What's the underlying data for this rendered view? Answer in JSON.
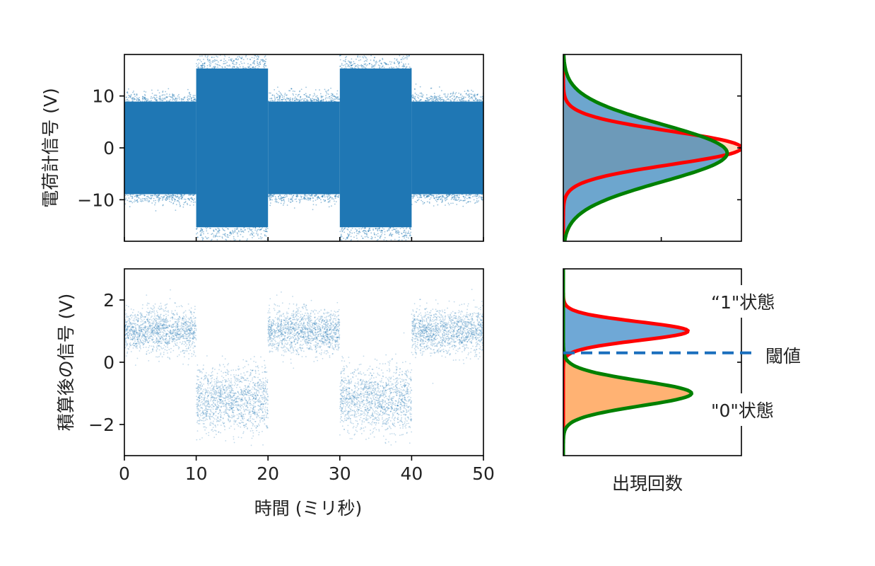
{
  "chart_data": [
    {
      "id": "raw_signal",
      "type": "scatter",
      "ylabel": "電荷計信号 (V)",
      "xlim": [
        0,
        50
      ],
      "ylim": [
        -18,
        18
      ],
      "yticks": [
        10,
        0,
        -10
      ],
      "ytick_labels": [
        "10",
        "0",
        "−10"
      ],
      "segments": [
        {
          "x0": 0,
          "x1": 10,
          "state": "1",
          "center": 0,
          "spread": 10.5
        },
        {
          "x0": 10,
          "x1": 20,
          "state": "0",
          "center": 0,
          "spread": 18
        },
        {
          "x0": 20,
          "x1": 30,
          "state": "1",
          "center": 0,
          "spread": 10.5
        },
        {
          "x0": 30,
          "x1": 40,
          "state": "0",
          "center": 0,
          "spread": 18
        },
        {
          "x0": 40,
          "x1": 50,
          "state": "1",
          "center": 0,
          "spread": 10.5
        }
      ],
      "color": "#1f77b4"
    },
    {
      "id": "raw_histogram",
      "type": "area",
      "orientation": "horizontal",
      "ylim": [
        -18,
        18
      ],
      "series": [
        {
          "fill": "#ffdcc2",
          "line": "#ff0000",
          "mean": 0,
          "sigma": 3.2,
          "peak": 1.0
        },
        {
          "fill": "#1f77b4",
          "line": "#008000",
          "mean": -1,
          "sigma": 5.5,
          "peak": 0.92
        }
      ]
    },
    {
      "id": "integrated_signal",
      "type": "scatter",
      "ylabel": "積算後の信号 (V)",
      "xlabel": "時間 (ミリ秒)",
      "xlim": [
        0,
        50
      ],
      "ylim": [
        -3,
        3
      ],
      "xticks": [
        0,
        10,
        20,
        30,
        40,
        50
      ],
      "xtick_labels": [
        "0",
        "10",
        "20",
        "30",
        "40",
        "50"
      ],
      "yticks": [
        2,
        0,
        -2
      ],
      "ytick_labels": [
        "2",
        "0",
        "−2"
      ],
      "segments": [
        {
          "x0": 0,
          "x1": 10,
          "state": "1",
          "center": 1.0,
          "sigma": 0.35
        },
        {
          "x0": 10,
          "x1": 20,
          "state": "0",
          "center": -1.2,
          "sigma": 0.5
        },
        {
          "x0": 20,
          "x1": 30,
          "state": "1",
          "center": 1.0,
          "sigma": 0.35
        },
        {
          "x0": 30,
          "x1": 40,
          "state": "0",
          "center": -1.2,
          "sigma": 0.5
        },
        {
          "x0": 40,
          "x1": 50,
          "state": "1",
          "center": 1.0,
          "sigma": 0.35
        }
      ],
      "color": "#1f77b4"
    },
    {
      "id": "integrated_histogram",
      "type": "area",
      "orientation": "horizontal",
      "xlabel": "出現回数",
      "ylim": [
        -3,
        3
      ],
      "threshold": 0.3,
      "series": [
        {
          "name": "“1\"状態",
          "fill": "#6fa8d6",
          "line": "#ff0000",
          "mean": 1.0,
          "sigma": 0.3,
          "peak": 0.7
        },
        {
          "name": "\"0\"状態",
          "fill": "#ffb273",
          "line": "#008000",
          "mean": -1.0,
          "sigma": 0.4,
          "peak": 0.72
        }
      ],
      "annotations": {
        "state1": "“1\"状態",
        "threshold": "閾値",
        "state0": "\"0\"状態"
      },
      "threshold_color": "#1a6fbd"
    }
  ]
}
